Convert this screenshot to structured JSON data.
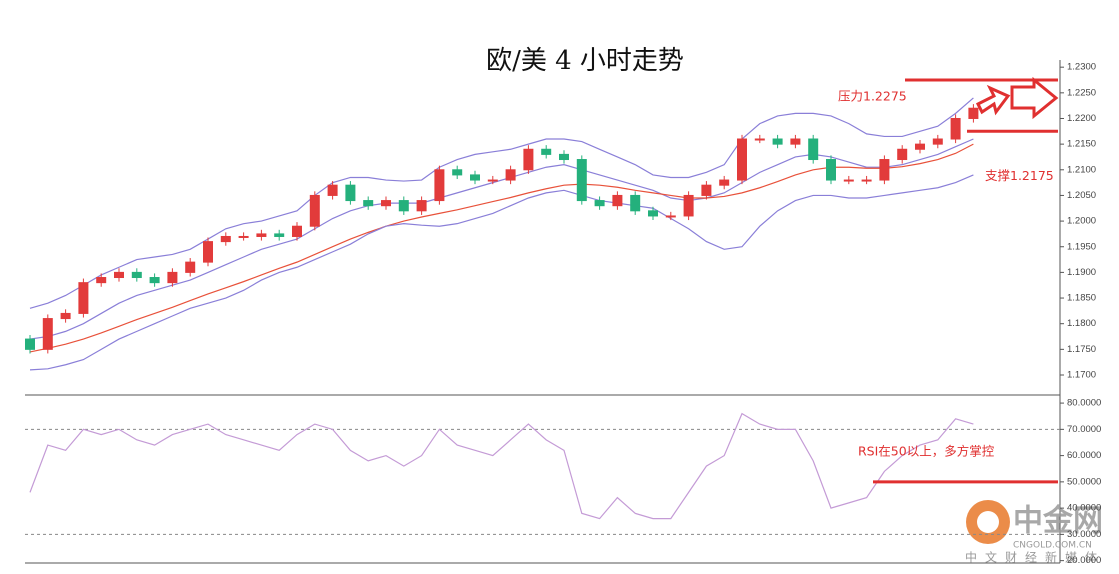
{
  "chart_data": [
    {
      "type": "candlestick",
      "title": "欧/美 4 小时走势",
      "open": [
        1.177,
        1.175,
        1.181,
        1.182,
        1.188,
        1.189,
        1.19,
        1.189,
        1.188,
        1.19,
        1.192,
        1.196,
        1.197,
        1.197,
        1.1975,
        1.197,
        1.199,
        1.205,
        1.207,
        1.204,
        1.203,
        1.204,
        1.202,
        1.204,
        1.21,
        1.209,
        1.208,
        1.208,
        1.21,
        1.214,
        1.213,
        1.212,
        1.204,
        1.203,
        1.205,
        1.202,
        1.201,
        1.201,
        1.205,
        1.207,
        1.208,
        1.216,
        1.216,
        1.215,
        1.216,
        1.212,
        1.208,
        1.208,
        1.208,
        1.212,
        1.214,
        1.215,
        1.216,
        1.22
      ],
      "high": [
        1.1778,
        1.1818,
        1.1828,
        1.1888,
        1.1898,
        1.1908,
        1.1908,
        1.1898,
        1.1908,
        1.1928,
        1.1968,
        1.1978,
        1.1978,
        1.1983,
        1.1983,
        1.1998,
        1.2058,
        1.2078,
        1.2078,
        1.2048,
        1.2048,
        1.2048,
        1.2048,
        1.2108,
        1.2108,
        1.2098,
        1.2088,
        1.2108,
        1.2148,
        1.2148,
        1.2138,
        1.2128,
        1.2048,
        1.2058,
        1.2058,
        1.2028,
        1.2018,
        1.2058,
        1.2078,
        1.2088,
        1.2168,
        1.2168,
        1.2168,
        1.2168,
        1.2168,
        1.2128,
        1.2088,
        1.2088,
        1.2128,
        1.2148,
        1.2158,
        1.2168,
        1.2208,
        1.2228
      ],
      "low": [
        1.1742,
        1.1742,
        1.1802,
        1.1812,
        1.1872,
        1.1882,
        1.1882,
        1.1872,
        1.1872,
        1.1892,
        1.1912,
        1.1952,
        1.1962,
        1.1962,
        1.1962,
        1.1962,
        1.1982,
        1.2042,
        1.2032,
        1.2022,
        1.2022,
        1.2012,
        1.2012,
        1.2032,
        1.2082,
        1.2072,
        1.2072,
        1.2072,
        1.2092,
        1.2122,
        1.2112,
        1.2032,
        1.2022,
        1.2022,
        1.2012,
        1.2002,
        1.2002,
        1.2002,
        1.2042,
        1.2062,
        1.2072,
        1.2152,
        1.2142,
        1.2142,
        1.2112,
        1.2072,
        1.2072,
        1.2072,
        1.2072,
        1.2112,
        1.2132,
        1.2142,
        1.2152,
        1.2192
      ],
      "close": [
        1.175,
        1.181,
        1.182,
        1.188,
        1.189,
        1.19,
        1.189,
        1.188,
        1.19,
        1.192,
        1.196,
        1.197,
        1.197,
        1.1975,
        1.197,
        1.199,
        1.205,
        1.207,
        1.204,
        1.203,
        1.204,
        1.202,
        1.204,
        1.21,
        1.209,
        1.208,
        1.208,
        1.21,
        1.214,
        1.213,
        1.212,
        1.204,
        1.203,
        1.205,
        1.202,
        1.201,
        1.201,
        1.205,
        1.207,
        1.208,
        1.216,
        1.216,
        1.215,
        1.216,
        1.212,
        1.208,
        1.208,
        1.208,
        1.212,
        1.214,
        1.215,
        1.216,
        1.22,
        1.222
      ],
      "up_color": "#e23b3b",
      "down_color": "#24b07c",
      "series": [
        {
          "color": "#8a7fd8",
          "values": [
            1.183,
            1.184,
            1.1855,
            1.1875,
            1.1895,
            1.191,
            1.1925,
            1.193,
            1.1935,
            1.1945,
            1.1965,
            1.1985,
            1.1995,
            1.2,
            1.201,
            1.202,
            1.205,
            1.2075,
            1.2085,
            1.2085,
            1.208,
            1.2078,
            1.208,
            1.2105,
            1.212,
            1.213,
            1.2135,
            1.214,
            1.215,
            1.216,
            1.216,
            1.2155,
            1.214,
            1.2125,
            1.211,
            1.209,
            1.2085,
            1.2085,
            1.2095,
            1.211,
            1.216,
            1.219,
            1.2205,
            1.221,
            1.221,
            1.2205,
            1.219,
            1.217,
            1.2165,
            1.2165,
            1.2175,
            1.2185,
            1.221,
            1.224
          ]
        },
        {
          "color": "#8a7fd8",
          "values": [
            1.177,
            1.1775,
            1.1785,
            1.18,
            1.182,
            1.184,
            1.1855,
            1.1865,
            1.1875,
            1.1885,
            1.19,
            1.1915,
            1.193,
            1.1945,
            1.1955,
            1.1965,
            1.1985,
            1.2005,
            1.202,
            1.203,
            1.2035,
            1.2035,
            1.2035,
            1.2045,
            1.2055,
            1.2065,
            1.2075,
            1.2085,
            1.2095,
            1.2105,
            1.211,
            1.21,
            1.209,
            1.208,
            1.207,
            1.206,
            1.2045,
            1.204,
            1.2045,
            1.2055,
            1.2075,
            1.2095,
            1.211,
            1.2125,
            1.213,
            1.2125,
            1.2115,
            1.2105,
            1.2105,
            1.211,
            1.212,
            1.213,
            1.2145,
            1.216
          ]
        },
        {
          "color": "#e8513a",
          "values": [
            1.1745,
            1.1752,
            1.176,
            1.177,
            1.1782,
            1.1795,
            1.1808,
            1.182,
            1.1832,
            1.1845,
            1.1858,
            1.187,
            1.1882,
            1.1895,
            1.1908,
            1.192,
            1.1935,
            1.195,
            1.1965,
            1.1978,
            1.199,
            1.2,
            1.2008,
            1.2015,
            1.2022,
            1.203,
            1.2038,
            1.2046,
            1.2055,
            1.2063,
            1.207,
            1.2072,
            1.207,
            1.2066,
            1.206,
            1.2055,
            1.205,
            1.2045,
            1.2045,
            1.2048,
            1.2055,
            1.2065,
            1.2077,
            1.209,
            1.21,
            1.2105,
            1.2105,
            1.2103,
            1.2103,
            1.2106,
            1.2112,
            1.212,
            1.2132,
            1.215
          ]
        },
        {
          "color": "#8a7fd8",
          "values": [
            1.171,
            1.1712,
            1.172,
            1.173,
            1.175,
            1.177,
            1.1785,
            1.18,
            1.1815,
            1.183,
            1.184,
            1.185,
            1.1865,
            1.1885,
            1.19,
            1.191,
            1.1925,
            1.194,
            1.1955,
            1.1975,
            1.199,
            1.1995,
            1.1992,
            1.199,
            1.1995,
            1.2005,
            1.2015,
            1.203,
            1.2045,
            1.2055,
            1.206,
            1.205,
            1.204,
            1.2035,
            1.203,
            1.2025,
            1.2005,
            1.1985,
            1.196,
            1.1945,
            1.195,
            1.199,
            1.202,
            1.204,
            1.205,
            1.205,
            1.2045,
            1.2045,
            1.205,
            1.2055,
            1.206,
            1.2065,
            1.2075,
            1.209
          ]
        }
      ],
      "ylim": [
        1.1661,
        1.2314
      ],
      "yticks": [
        {
          "value": 1.17,
          "label": "1.1700"
        },
        {
          "value": 1.175,
          "label": "1.1750"
        },
        {
          "value": 1.18,
          "label": "1.1800"
        },
        {
          "value": 1.185,
          "label": "1.1850"
        },
        {
          "value": 1.19,
          "label": "1.1900"
        },
        {
          "value": 1.195,
          "label": "1.1950"
        },
        {
          "value": 1.2,
          "label": "1.2000"
        },
        {
          "value": 1.205,
          "label": "1.2050"
        },
        {
          "value": 1.21,
          "label": "1.2100"
        },
        {
          "value": 1.215,
          "label": "1.2150"
        },
        {
          "value": 1.22,
          "label": "1.2200"
        },
        {
          "value": 1.225,
          "label": "1.2250"
        },
        {
          "value": 1.23,
          "label": "1.2300"
        }
      ],
      "annotations": [
        {
          "text": "压力1.2275",
          "value": 1.2275,
          "color": "#e03030"
        },
        {
          "text": "支撑1.2175",
          "value": 1.2175,
          "color": "#e03030"
        }
      ]
    },
    {
      "type": "line",
      "series": [
        {
          "color": "#c49bd6",
          "values": [
            46,
            64,
            62,
            70,
            68,
            70,
            66,
            64,
            68,
            70,
            72,
            68,
            66,
            64,
            62,
            68,
            72,
            70,
            62,
            58,
            60,
            56,
            60,
            70,
            64,
            62,
            60,
            66,
            72,
            66,
            62,
            38,
            36,
            44,
            38,
            36,
            36,
            46,
            56,
            60,
            76,
            72,
            70,
            70,
            58,
            40,
            42,
            44,
            54,
            60,
            64,
            66,
            74,
            72
          ]
        }
      ],
      "levels": [
        70,
        30
      ],
      "ylim": [
        19.1,
        82.7
      ],
      "yticks": [
        {
          "value": 80,
          "label": "80.0000"
        },
        {
          "value": 70,
          "label": "70.0000"
        },
        {
          "value": 60,
          "label": "60.0000"
        },
        {
          "value": 50,
          "label": "50.0000"
        },
        {
          "value": 40,
          "label": "40.0000"
        },
        {
          "value": 30,
          "label": "30.0000"
        },
        {
          "value": 20,
          "label": "20.0000"
        }
      ],
      "annotations": [
        {
          "text": "RSI在50以上，多方掌控",
          "value": 50,
          "color": "#e03030"
        }
      ]
    }
  ],
  "watermark": {
    "brand": "中金网",
    "site": "CNGOLD.COM.CN",
    "tagline": "中文财经新媒体"
  }
}
